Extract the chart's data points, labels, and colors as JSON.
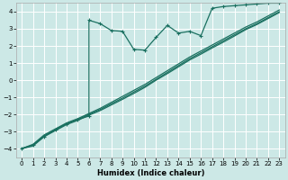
{
  "xlabel": "Humidex (Indice chaleur)",
  "bg_color": "#cce8e6",
  "grid_color": "#ffffff",
  "line_color": "#1a7060",
  "xlim": [
    -0.5,
    23.5
  ],
  "ylim": [
    -4.5,
    4.5
  ],
  "xticks": [
    0,
    1,
    2,
    3,
    4,
    5,
    6,
    7,
    8,
    9,
    10,
    11,
    12,
    13,
    14,
    15,
    16,
    17,
    18,
    19,
    20,
    21,
    22,
    23
  ],
  "yticks": [
    -4,
    -3,
    -2,
    -1,
    0,
    1,
    2,
    3,
    4
  ],
  "series_main_x": [
    0,
    1,
    2,
    3,
    4,
    5,
    6,
    6,
    7,
    8,
    9,
    10,
    11,
    12,
    13,
    14,
    15,
    16,
    17,
    18,
    19,
    20,
    21,
    22,
    23
  ],
  "series_main_y": [
    -4.0,
    -3.8,
    -3.3,
    -2.9,
    -2.55,
    -2.3,
    -2.1,
    3.5,
    3.3,
    2.9,
    2.85,
    1.8,
    1.75,
    2.5,
    3.2,
    2.75,
    2.85,
    2.6,
    4.2,
    4.3,
    4.35,
    4.4,
    4.45,
    4.5,
    4.5
  ],
  "series_line2_x": [
    0,
    1,
    2,
    3,
    4,
    5,
    6,
    7,
    8,
    9,
    10,
    11,
    12,
    13,
    14,
    15,
    16,
    17,
    18,
    19,
    20,
    21,
    22,
    23
  ],
  "series_line2_y": [
    -4.0,
    -3.75,
    -3.2,
    -2.85,
    -2.5,
    -2.25,
    -1.95,
    -1.65,
    -1.3,
    -0.95,
    -0.6,
    -0.25,
    0.15,
    0.55,
    0.95,
    1.35,
    1.7,
    2.05,
    2.4,
    2.75,
    3.1,
    3.4,
    3.75,
    4.1
  ],
  "series_line3_x": [
    0,
    1,
    2,
    3,
    4,
    5,
    6,
    7,
    8,
    9,
    10,
    11,
    12,
    13,
    14,
    15,
    16,
    17,
    18,
    19,
    20,
    21,
    22,
    23
  ],
  "series_line3_y": [
    -4.0,
    -3.8,
    -3.25,
    -2.9,
    -2.55,
    -2.3,
    -2.0,
    -1.72,
    -1.38,
    -1.05,
    -0.7,
    -0.35,
    0.05,
    0.45,
    0.85,
    1.25,
    1.6,
    1.95,
    2.3,
    2.65,
    3.0,
    3.3,
    3.65,
    4.0
  ],
  "series_line4_x": [
    0,
    1,
    2,
    3,
    4,
    5,
    6,
    7,
    8,
    9,
    10,
    11,
    12,
    13,
    14,
    15,
    16,
    17,
    18,
    19,
    20,
    21,
    22,
    23
  ],
  "series_line4_y": [
    -4.0,
    -3.85,
    -3.3,
    -2.95,
    -2.6,
    -2.35,
    -2.05,
    -1.78,
    -1.45,
    -1.12,
    -0.78,
    -0.42,
    0.0,
    0.38,
    0.78,
    1.18,
    1.52,
    1.88,
    2.22,
    2.58,
    2.95,
    3.25,
    3.6,
    3.95
  ]
}
